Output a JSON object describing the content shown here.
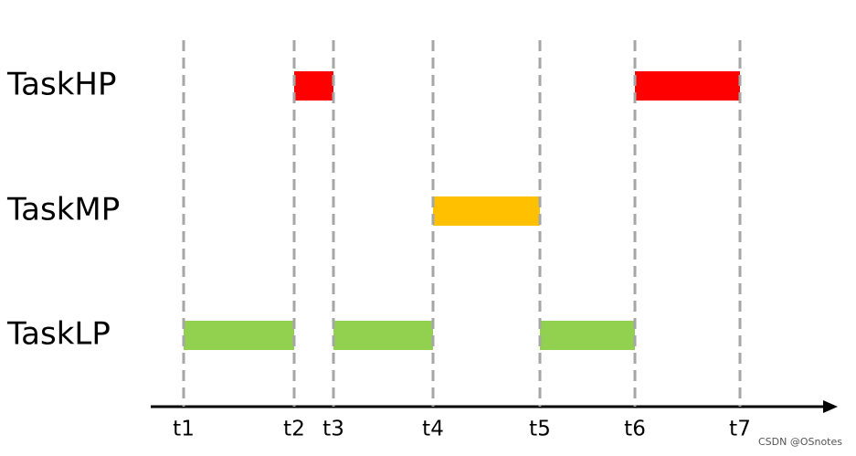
{
  "times": [
    "t1",
    "t2",
    "t3",
    "t4",
    "t5",
    "t6",
    "t7"
  ],
  "tasks": [
    {
      "label": "TaskHP",
      "color": "#ff0000",
      "segments": [
        {
          "from": "t2",
          "to": "t3"
        },
        {
          "from": "t6",
          "to": "t7"
        }
      ]
    },
    {
      "label": "TaskMP",
      "color": "#ffc000",
      "segments": [
        {
          "from": "t4",
          "to": "t5"
        }
      ]
    },
    {
      "label": "TaskLP",
      "color": "#92d050",
      "segments": [
        {
          "from": "t1",
          "to": "t2"
        },
        {
          "from": "t3",
          "to": "t4"
        },
        {
          "from": "t5",
          "to": "t6"
        }
      ]
    }
  ],
  "watermark": "CSDN @OSnotes"
}
